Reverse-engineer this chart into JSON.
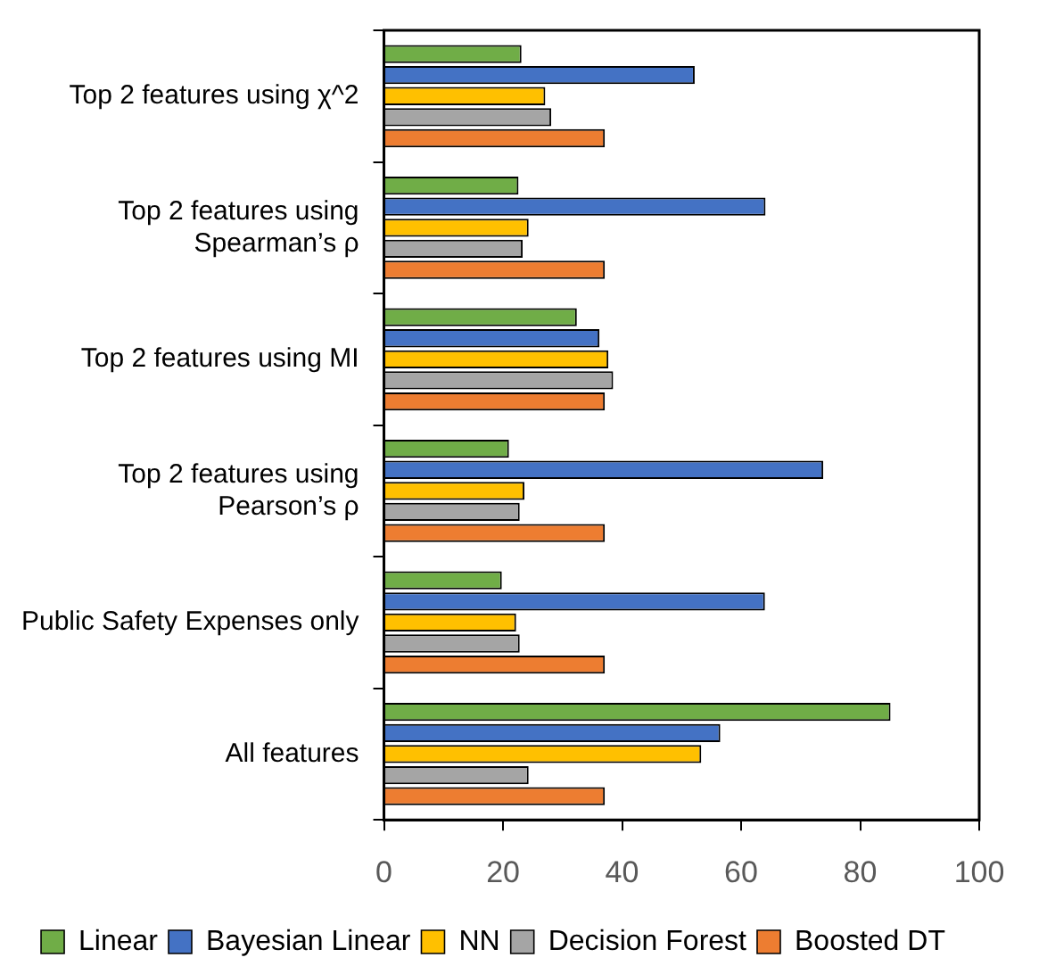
{
  "chart_data": {
    "type": "bar",
    "orientation": "horizontal",
    "categories": [
      "Top 2 features using χ^2",
      "Top 2 features using\nSpearman’s ρ",
      "Top 2 features using MI",
      "Top 2 features using\nPearson’s ρ",
      "Public Safety Expenses only",
      "All features"
    ],
    "series": [
      {
        "name": "Linear",
        "color": "#70ad47",
        "values": [
          23.1,
          22.6,
          32.4,
          21.0,
          19.8,
          85.1
        ]
      },
      {
        "name": "Bayesian Linear",
        "color": "#4472c4",
        "values": [
          52.2,
          64.1,
          36.2,
          73.8,
          64.0,
          56.5
        ]
      },
      {
        "name": "NN",
        "color": "#ffc000",
        "values": [
          27.1,
          24.3,
          37.7,
          23.6,
          22.2,
          53.3
        ]
      },
      {
        "name": "Decision Forest",
        "color": "#a5a5a5",
        "values": [
          28.1,
          23.3,
          38.5,
          22.8,
          22.8,
          24.3
        ]
      },
      {
        "name": "Boosted DT",
        "color": "#ed7d31",
        "values": [
          37.1,
          37.1,
          37.1,
          37.1,
          37.1,
          37.1
        ]
      }
    ],
    "xlim": [
      0,
      100
    ],
    "xticks": [
      0,
      20,
      40,
      60,
      80,
      100
    ],
    "grid": false,
    "legend": "bottom"
  }
}
